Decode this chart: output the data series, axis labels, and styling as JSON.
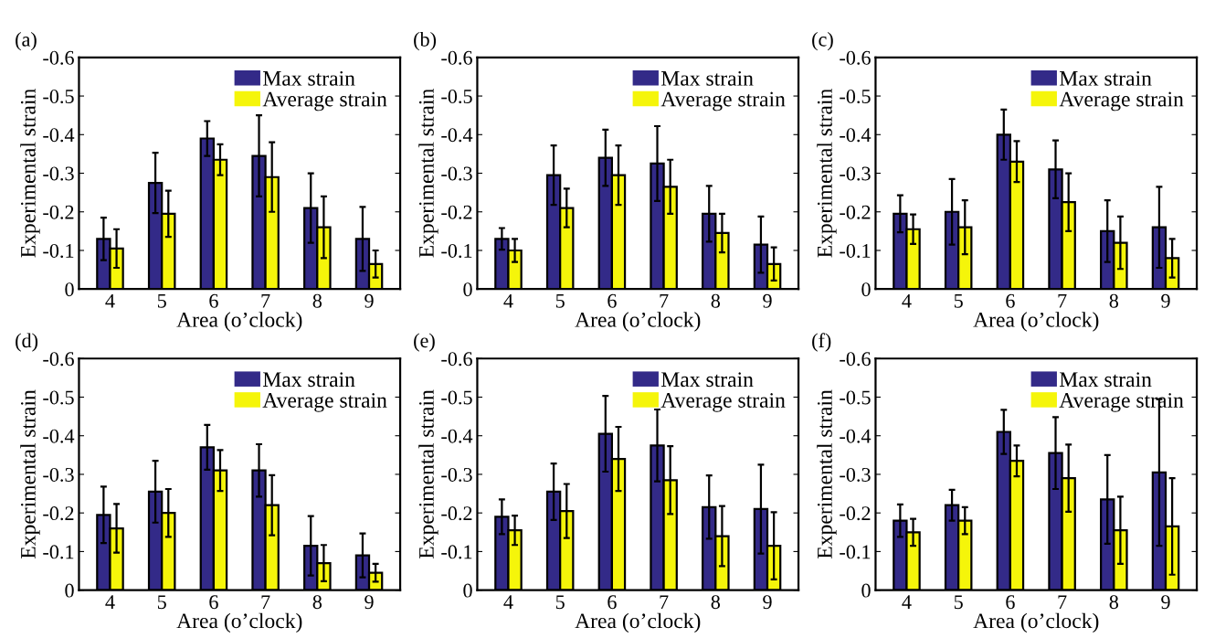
{
  "chart_data": [
    {
      "type": "bar",
      "title": "(a)",
      "xlabel": "Area (o’clock)",
      "ylabel": "Experimental strain",
      "categories": [
        "4",
        "5",
        "6",
        "7",
        "8",
        "9"
      ],
      "ylim": [
        0,
        -0.6
      ],
      "yticks": [
        0,
        -0.1,
        -0.2,
        -0.3,
        -0.4,
        -0.5,
        -0.6
      ],
      "legend": "top right",
      "grid": false,
      "series": [
        {
          "name": "Max strain",
          "color": "#332a88",
          "values": [
            -0.13,
            -0.275,
            -0.39,
            -0.345,
            -0.21,
            -0.13
          ],
          "errors": [
            0.055,
            0.078,
            0.045,
            0.105,
            0.09,
            0.083
          ]
        },
        {
          "name": "Average strain",
          "color": "#f5f50a",
          "values": [
            -0.105,
            -0.195,
            -0.335,
            -0.29,
            -0.16,
            -0.065
          ],
          "errors": [
            0.05,
            0.06,
            0.04,
            0.09,
            0.08,
            0.035
          ]
        }
      ]
    },
    {
      "type": "bar",
      "title": "(b)",
      "xlabel": "Area (o’clock)",
      "ylabel": "Experimental strain",
      "categories": [
        "4",
        "5",
        "6",
        "7",
        "8",
        "9"
      ],
      "ylim": [
        0,
        -0.6
      ],
      "yticks": [
        0,
        -0.1,
        -0.2,
        -0.3,
        -0.4,
        -0.5,
        -0.6
      ],
      "legend": "top right",
      "grid": false,
      "series": [
        {
          "name": "Max strain",
          "color": "#332a88",
          "values": [
            -0.13,
            -0.295,
            -0.34,
            -0.325,
            -0.195,
            -0.115
          ],
          "errors": [
            0.028,
            0.077,
            0.073,
            0.097,
            0.072,
            0.073
          ]
        },
        {
          "name": "Average strain",
          "color": "#f5f50a",
          "values": [
            -0.1,
            -0.21,
            -0.295,
            -0.265,
            -0.145,
            -0.065
          ],
          "errors": [
            0.03,
            0.05,
            0.077,
            0.07,
            0.05,
            0.043
          ]
        }
      ]
    },
    {
      "type": "bar",
      "title": "(c)",
      "xlabel": "Area (o’clock)",
      "ylabel": "Experimental strain",
      "categories": [
        "4",
        "5",
        "6",
        "7",
        "8",
        "9"
      ],
      "ylim": [
        0,
        -0.6
      ],
      "yticks": [
        0,
        -0.1,
        -0.2,
        -0.3,
        -0.4,
        -0.5,
        -0.6
      ],
      "legend": "top right",
      "grid": false,
      "series": [
        {
          "name": "Max strain",
          "color": "#332a88",
          "values": [
            -0.195,
            -0.2,
            -0.4,
            -0.31,
            -0.15,
            -0.16
          ],
          "errors": [
            0.048,
            0.085,
            0.065,
            0.075,
            0.08,
            0.105
          ]
        },
        {
          "name": "Average strain",
          "color": "#f5f50a",
          "values": [
            -0.155,
            -0.16,
            -0.33,
            -0.225,
            -0.12,
            -0.08
          ],
          "errors": [
            0.038,
            0.07,
            0.053,
            0.075,
            0.068,
            0.05
          ]
        }
      ]
    },
    {
      "type": "bar",
      "title": "(d)",
      "xlabel": "Area (o’clock)",
      "ylabel": "Experimental strain",
      "categories": [
        "4",
        "5",
        "6",
        "7",
        "8",
        "9"
      ],
      "ylim": [
        0,
        -0.6
      ],
      "yticks": [
        0,
        -0.1,
        -0.2,
        -0.3,
        -0.4,
        -0.5,
        -0.6
      ],
      "legend": "top right",
      "grid": false,
      "series": [
        {
          "name": "Max strain",
          "color": "#332a88",
          "values": [
            -0.195,
            -0.255,
            -0.37,
            -0.31,
            -0.115,
            -0.09
          ],
          "errors": [
            0.073,
            0.08,
            0.058,
            0.068,
            0.077,
            0.057
          ]
        },
        {
          "name": "Average strain",
          "color": "#f5f50a",
          "values": [
            -0.16,
            -0.2,
            -0.31,
            -0.22,
            -0.07,
            -0.045
          ],
          "errors": [
            0.063,
            0.062,
            0.053,
            0.078,
            0.047,
            0.023
          ]
        }
      ]
    },
    {
      "type": "bar",
      "title": "(e)",
      "xlabel": "Area (o’clock)",
      "ylabel": "Experimental strain",
      "categories": [
        "4",
        "5",
        "6",
        "7",
        "8",
        "9"
      ],
      "ylim": [
        0,
        -0.6
      ],
      "yticks": [
        0,
        -0.1,
        -0.2,
        -0.3,
        -0.4,
        -0.5,
        -0.6
      ],
      "legend": "top right",
      "grid": false,
      "series": [
        {
          "name": "Max strain",
          "color": "#332a88",
          "values": [
            -0.19,
            -0.255,
            -0.405,
            -0.375,
            -0.215,
            -0.21
          ],
          "errors": [
            0.045,
            0.073,
            0.098,
            0.093,
            0.082,
            0.115
          ]
        },
        {
          "name": "Average strain",
          "color": "#f5f50a",
          "values": [
            -0.155,
            -0.205,
            -0.34,
            -0.285,
            -0.14,
            -0.115
          ],
          "errors": [
            0.038,
            0.07,
            0.083,
            0.088,
            0.078,
            0.087
          ]
        }
      ]
    },
    {
      "type": "bar",
      "title": "(f)",
      "xlabel": "Area (o’clock)",
      "ylabel": "Experimental strain",
      "categories": [
        "4",
        "5",
        "6",
        "7",
        "8",
        "9"
      ],
      "ylim": [
        0,
        -0.6
      ],
      "yticks": [
        0,
        -0.1,
        -0.2,
        -0.3,
        -0.4,
        -0.5,
        -0.6
      ],
      "legend": "top right",
      "grid": false,
      "series": [
        {
          "name": "Max strain",
          "color": "#332a88",
          "values": [
            -0.18,
            -0.22,
            -0.41,
            -0.355,
            -0.235,
            -0.305
          ],
          "errors": [
            0.042,
            0.04,
            0.057,
            0.093,
            0.115,
            0.19
          ]
        },
        {
          "name": "Average strain",
          "color": "#f5f50a",
          "values": [
            -0.15,
            -0.18,
            -0.335,
            -0.29,
            -0.155,
            -0.165
          ],
          "errors": [
            0.035,
            0.035,
            0.04,
            0.087,
            0.087,
            0.125
          ]
        }
      ]
    }
  ]
}
